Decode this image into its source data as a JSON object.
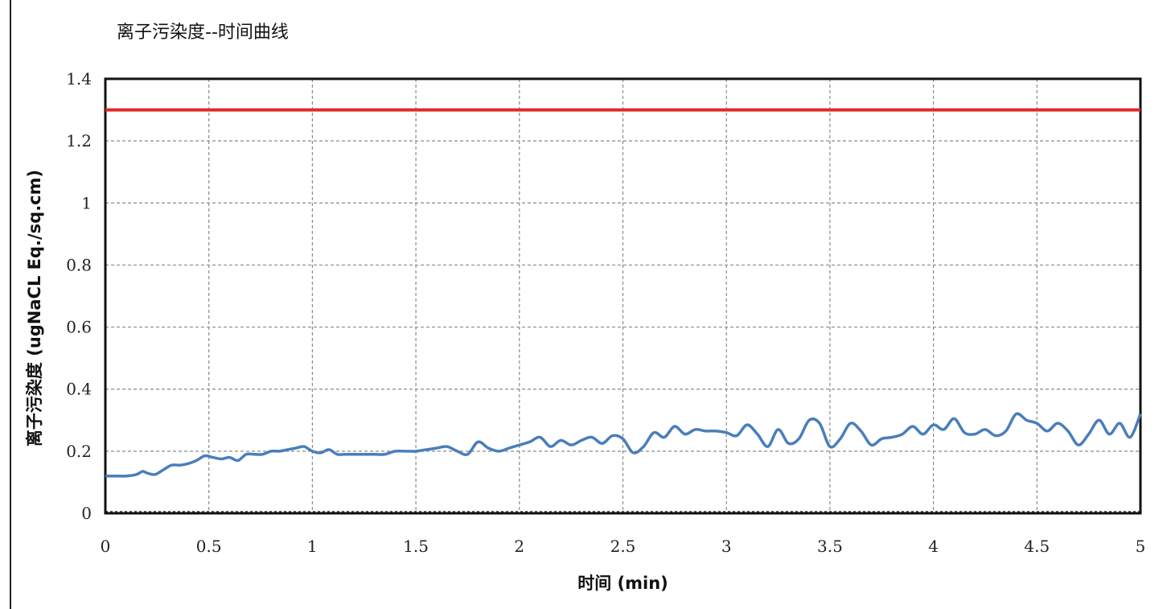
{
  "chart_data": {
    "type": "line",
    "title": "离子污染度--时间曲线",
    "xlabel": "时间 (min)",
    "ylabel": "离子污染度 (ugNaCL Eq./sq.cm)",
    "xlim": [
      0,
      5
    ],
    "ylim": [
      0,
      1.4
    ],
    "x_ticks": [
      "0",
      "0.5",
      "1",
      "1.5",
      "2",
      "2.5",
      "3",
      "3.5",
      "4",
      "4.5",
      "5"
    ],
    "y_ticks": [
      "0",
      "0.2",
      "0.4",
      "0.6",
      "0.8",
      "1",
      "1.2",
      "1.4"
    ],
    "grid": true,
    "legend": "none",
    "colors": {
      "series": "#4a7ebb",
      "threshold": "#e0282e",
      "frame": "#111111",
      "grid": "#8a8a8a"
    },
    "threshold": {
      "y": 1.3
    },
    "series": [
      {
        "x": [
          0,
          0.05,
          0.1,
          0.15,
          0.18,
          0.2,
          0.24,
          0.28,
          0.32,
          0.36,
          0.4,
          0.44,
          0.48,
          0.52,
          0.56,
          0.6,
          0.64,
          0.68,
          0.72,
          0.76,
          0.8,
          0.84,
          0.88,
          0.92,
          0.96,
          1.0,
          1.04,
          1.08,
          1.12,
          1.16,
          1.2,
          1.25,
          1.3,
          1.35,
          1.4,
          1.45,
          1.5,
          1.55,
          1.6,
          1.65,
          1.7,
          1.75,
          1.8,
          1.85,
          1.9,
          1.95,
          2.0,
          2.05,
          2.1,
          2.15,
          2.2,
          2.25,
          2.3,
          2.35,
          2.4,
          2.45,
          2.5,
          2.55,
          2.6,
          2.65,
          2.7,
          2.75,
          2.8,
          2.85,
          2.9,
          2.95,
          3.0,
          3.05,
          3.1,
          3.15,
          3.2,
          3.25,
          3.3,
          3.35,
          3.4,
          3.45,
          3.5,
          3.55,
          3.6,
          3.65,
          3.7,
          3.75,
          3.8,
          3.85,
          3.9,
          3.95,
          4.0,
          4.05,
          4.1,
          4.15,
          4.2,
          4.25,
          4.3,
          4.35,
          4.4,
          4.45,
          4.5,
          4.55,
          4.6,
          4.65,
          4.7,
          4.75,
          4.8,
          4.85,
          4.9,
          4.95,
          5.0
        ],
        "values": [
          0.12,
          0.12,
          0.12,
          0.125,
          0.135,
          0.13,
          0.125,
          0.14,
          0.155,
          0.155,
          0.16,
          0.17,
          0.185,
          0.18,
          0.175,
          0.18,
          0.17,
          0.19,
          0.19,
          0.19,
          0.2,
          0.2,
          0.205,
          0.21,
          0.215,
          0.2,
          0.195,
          0.205,
          0.19,
          0.19,
          0.19,
          0.19,
          0.19,
          0.19,
          0.2,
          0.2,
          0.2,
          0.205,
          0.21,
          0.215,
          0.2,
          0.19,
          0.23,
          0.21,
          0.2,
          0.21,
          0.22,
          0.23,
          0.245,
          0.215,
          0.235,
          0.22,
          0.235,
          0.245,
          0.225,
          0.25,
          0.24,
          0.195,
          0.215,
          0.26,
          0.245,
          0.28,
          0.255,
          0.27,
          0.265,
          0.265,
          0.26,
          0.25,
          0.285,
          0.255,
          0.215,
          0.27,
          0.225,
          0.24,
          0.3,
          0.29,
          0.215,
          0.24,
          0.29,
          0.265,
          0.22,
          0.24,
          0.245,
          0.255,
          0.28,
          0.255,
          0.285,
          0.27,
          0.305,
          0.26,
          0.255,
          0.27,
          0.25,
          0.265,
          0.32,
          0.3,
          0.29,
          0.265,
          0.29,
          0.265,
          0.22,
          0.255,
          0.3,
          0.255,
          0.29,
          0.245,
          0.32
        ]
      }
    ]
  }
}
